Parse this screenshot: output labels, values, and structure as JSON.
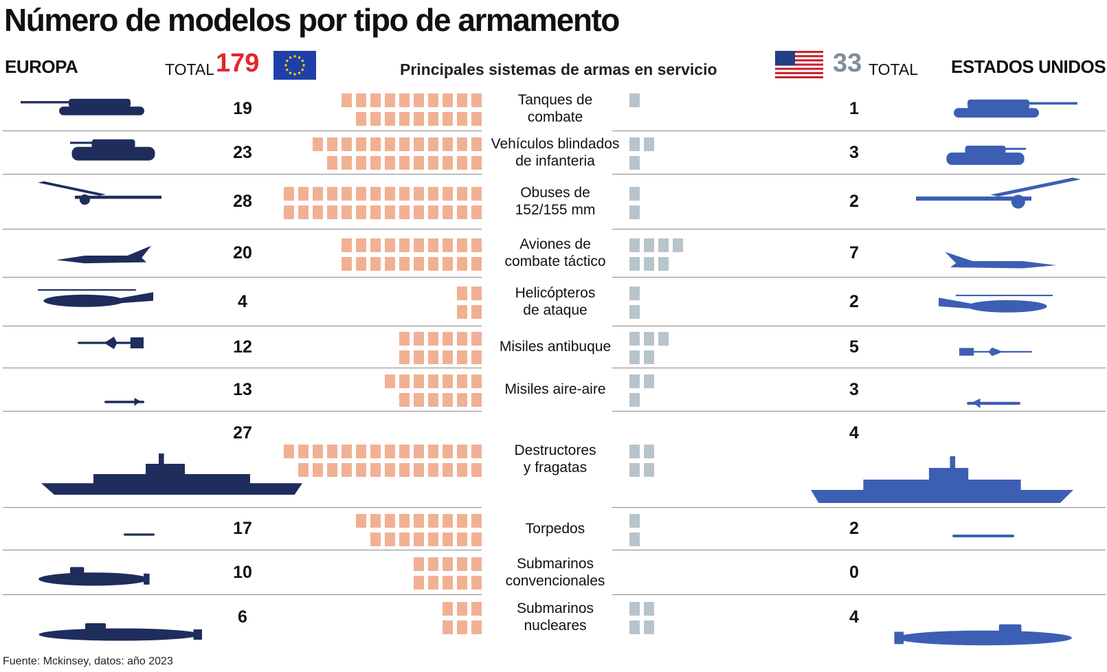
{
  "title": "Número de modelos por tipo de armamento",
  "header": {
    "europe_label": "EUROPA",
    "total_label": "TOTAL",
    "europe_total": "179",
    "center_label": "Principales sistemas de armas en servicio",
    "us_total": "33",
    "us_label": "ESTADOS UNIDOS"
  },
  "colors": {
    "europe_squares": "#f2b093",
    "us_squares": "#b8c4cc",
    "europe_icons": "#1f2d5c",
    "us_icons": "#3c5fb4",
    "eu_total": "#e5242b",
    "us_total": "#7e8f9c"
  },
  "chart_data": {
    "type": "bar",
    "categories": [
      "Tanques de combate",
      "Vehículos blindados de infantería",
      "Obuses de 152/155 mm",
      "Aviones de combate táctico",
      "Helicópteros de ataque",
      "Misiles antibuque",
      "Misiles aire-aire",
      "Destructores y fragatas",
      "Torpedos",
      "Submarinos convencionales",
      "Submarinos nucleares"
    ],
    "series": [
      {
        "name": "EUROPA",
        "values": [
          19,
          23,
          28,
          20,
          4,
          12,
          13,
          27,
          17,
          10,
          6
        ]
      },
      {
        "name": "ESTADOS UNIDOS",
        "values": [
          1,
          3,
          2,
          7,
          2,
          5,
          3,
          4,
          2,
          0,
          4
        ]
      }
    ],
    "europe_counts": [
      "19",
      "23",
      "28",
      "20",
      "4",
      "12",
      "13",
      "27",
      "17",
      "10",
      "6"
    ],
    "us_counts": [
      "1",
      "3",
      "2",
      "7",
      "2",
      "5",
      "3",
      "4",
      "2",
      "0",
      "4"
    ],
    "labels": [
      [
        "Tanques de",
        "combate"
      ],
      [
        "Vehículos blindados",
        "de infanteria"
      ],
      [
        "Obuses de",
        "152/155 mm"
      ],
      [
        "Aviones de",
        "combate táctico"
      ],
      [
        "Helicópteros",
        "de ataque"
      ],
      [
        "Misiles antibuque"
      ],
      [
        "Misiles aire-aire"
      ],
      [
        "Destructores",
        "y fragatas"
      ],
      [
        "Torpedos"
      ],
      [
        "Submarinos",
        "convencionales"
      ],
      [
        "Submarinos",
        "nucleares"
      ]
    ]
  },
  "icons": [
    "tank-icon",
    "ifv-icon",
    "howitzer-icon",
    "fighter-jet-icon",
    "attack-helicopter-icon",
    "antiship-missile-icon",
    "air-to-air-missile-icon",
    "destroyer-icon",
    "torpedo-icon",
    "conventional-submarine-icon",
    "nuclear-submarine-icon"
  ],
  "source": "Fuente: Mckinsey, datos: año 2023"
}
